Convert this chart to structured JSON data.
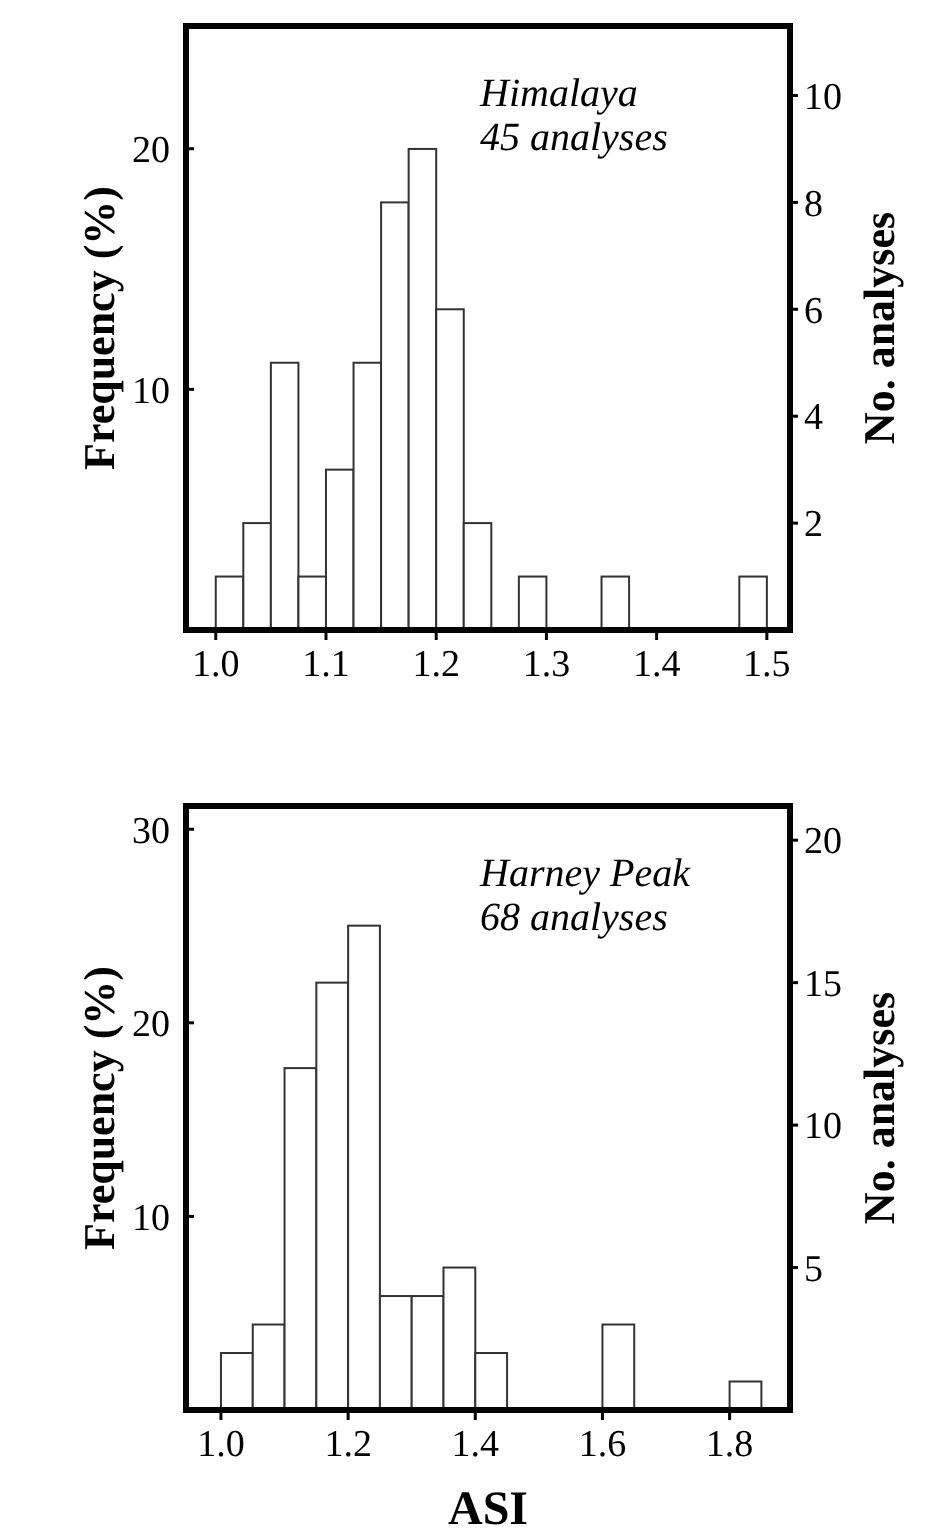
{
  "chart_data": [
    {
      "type": "histogram",
      "ylabel": "Frequency (%)",
      "y2label": "No. analyses",
      "annotations": [
        "Himalaya",
        "45 analyses"
      ],
      "bins": [
        1.0,
        1.025,
        1.05,
        1.075,
        1.1,
        1.125,
        1.15,
        1.175,
        1.2,
        1.225,
        1.25,
        1.275,
        1.3,
        1.325,
        1.35,
        1.375,
        1.4,
        1.425,
        1.45,
        1.475,
        1.5
      ],
      "series": [
        {
          "color": "#ffffff",
          "axis": "y2",
          "values": [
            1,
            2,
            5,
            1,
            3,
            5,
            8,
            9,
            6,
            2,
            0,
            1,
            0,
            0,
            1,
            0,
            0,
            0,
            0,
            1
          ]
        }
      ],
      "xlim": [
        0.973,
        1.521
      ],
      "xticks": [
        {
          "value": 1.0,
          "label": "1.0"
        },
        1.1,
        1.2,
        1.3,
        1.4,
        1.5
      ],
      "ylim": [
        0,
        25.1
      ],
      "yticks": [
        10,
        20
      ],
      "y2lim": [
        0,
        11.3
      ],
      "y2ticks": [
        2,
        4,
        6,
        8,
        10
      ],
      "grid": false
    },
    {
      "type": "histogram",
      "ylabel": "Frequency (%)",
      "y2label": "No. analyses",
      "xlabel": "ASI",
      "annotations": [
        "Harney Peak",
        "68 analyses"
      ],
      "bins": [
        1.0,
        1.05,
        1.1,
        1.15,
        1.2,
        1.25,
        1.3,
        1.35,
        1.4,
        1.45,
        1.5,
        1.55,
        1.6,
        1.65,
        1.7,
        1.75,
        1.8,
        1.85
      ],
      "series": [
        {
          "color": "#ffffff",
          "axis": "y2",
          "values": [
            2,
            3,
            12,
            15,
            17,
            4,
            4,
            5,
            2,
            0,
            0,
            0,
            3,
            0,
            0,
            0,
            1
          ]
        }
      ],
      "xlim": [
        0.945,
        1.895
      ],
      "xticks": [
        {
          "value": 1.0,
          "label": "1.0"
        },
        1.2,
        1.4,
        1.6,
        1.8
      ],
      "ylim": [
        0,
        31.2
      ],
      "yticks": [
        10,
        20,
        30
      ],
      "y2lim": [
        0,
        21.2
      ],
      "y2ticks": [
        5,
        10,
        15,
        20
      ],
      "grid": false
    }
  ]
}
